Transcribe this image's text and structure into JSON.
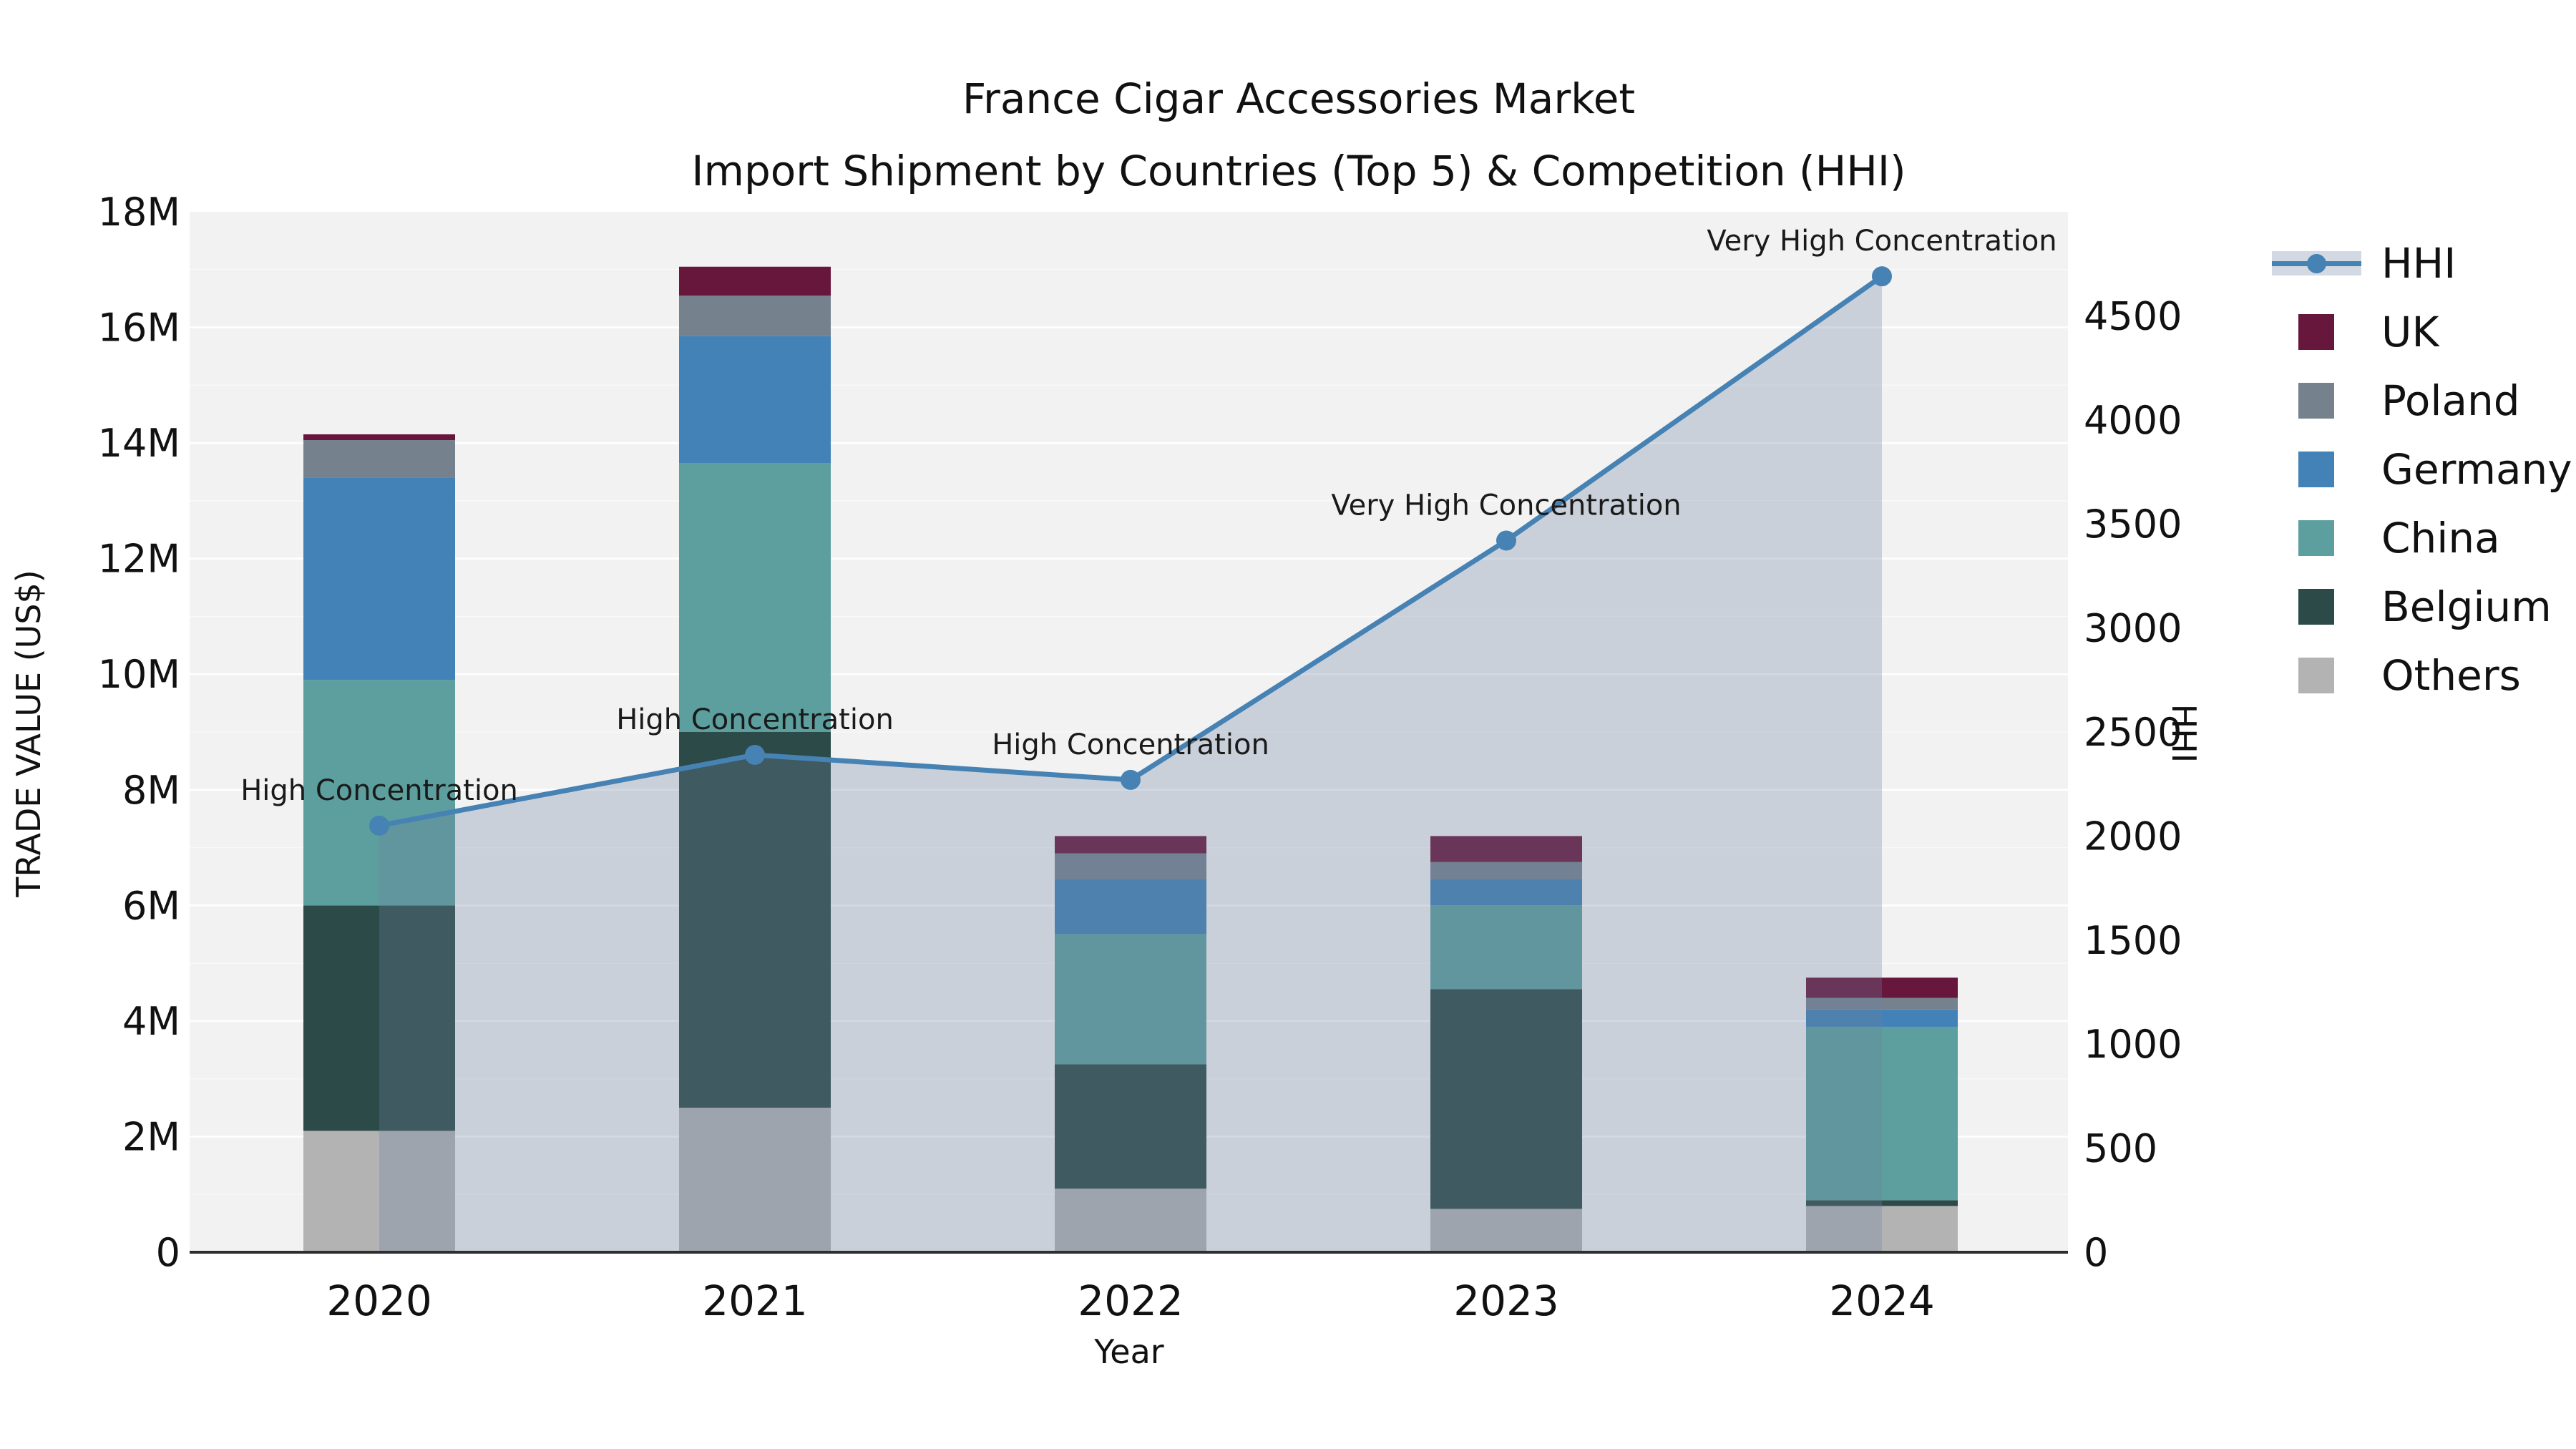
{
  "title": {
    "line1": "France Cigar Accessories Market",
    "line2": "Import Shipment by Countries (Top 5) & Competition (HHI)"
  },
  "axes": {
    "x_label": "Year",
    "y_left_label": "TRADE VALUE (US$)",
    "y_right_label": "HHI",
    "y_left_tick_labels": [
      "0",
      "2M",
      "4M",
      "6M",
      "8M",
      "10M",
      "12M",
      "14M",
      "16M",
      "18M"
    ],
    "y_right_tick_labels": [
      "0",
      "500",
      "1000",
      "1500",
      "2000",
      "2500",
      "3000",
      "3500",
      "4000",
      "4500"
    ]
  },
  "chart_data": {
    "type": "bar+line dual-axis (stacked bars = trade value, line+area = HHI)",
    "categories": [
      "2020",
      "2021",
      "2022",
      "2023",
      "2024"
    ],
    "bar_value_unit": "million US$ (left axis)",
    "series": [
      {
        "name": "Others",
        "color": "#B3B3B3",
        "values": [
          2.1,
          2.5,
          1.1,
          0.75,
          0.8
        ]
      },
      {
        "name": "Belgium",
        "color": "#2C4A47",
        "values": [
          3.9,
          6.5,
          2.15,
          3.8,
          0.1
        ]
      },
      {
        "name": "China",
        "color": "#5C9F9E",
        "values": [
          3.9,
          4.65,
          2.25,
          1.45,
          3.0
        ]
      },
      {
        "name": "Germany",
        "color": "#4382B6",
        "values": [
          3.5,
          2.2,
          0.95,
          0.45,
          0.3
        ]
      },
      {
        "name": "Poland",
        "color": "#75828E",
        "values": [
          0.65,
          0.7,
          0.45,
          0.3,
          0.2
        ]
      },
      {
        "name": "UK",
        "color": "#67163C",
        "values": [
          0.1,
          0.5,
          0.3,
          0.45,
          0.35
        ]
      }
    ],
    "bar_totals_millions": [
      14.15,
      17.05,
      7.2,
      7.2,
      4.75
    ],
    "line": {
      "name": "HHI",
      "axis": "right",
      "color": "#4682B4",
      "area_fill": "rgba(108,130,160,0.30)",
      "values": [
        2050,
        2390,
        2270,
        3420,
        4690
      ],
      "annotations": [
        "High Concentration",
        "High Concentration",
        "High Concentration",
        "Very High Concentration",
        "Very High Concentration"
      ]
    },
    "y_left": {
      "min": 0,
      "max_millions": 18,
      "tick_step_millions": 2
    },
    "y_right": {
      "min": 0,
      "max_at_plot_top": 5000,
      "tick_step": 500
    },
    "grid": true,
    "plot_background": "#F2F2F2",
    "grid_color": "#FFFFFF",
    "spine_color": "#2E2E2E",
    "legend_position": "right"
  },
  "legend": {
    "items": [
      {
        "label": "HHI",
        "swatch": "line",
        "color": "#4682B4"
      },
      {
        "label": "UK",
        "swatch": "square",
        "color": "#67163C"
      },
      {
        "label": "Poland",
        "swatch": "square",
        "color": "#75828E"
      },
      {
        "label": "Germany",
        "swatch": "square",
        "color": "#4382B6"
      },
      {
        "label": "China",
        "swatch": "square",
        "color": "#5C9F9E"
      },
      {
        "label": "Belgium",
        "swatch": "square",
        "color": "#2C4A47"
      },
      {
        "label": "Others",
        "swatch": "square",
        "color": "#B3B3B3"
      }
    ]
  }
}
